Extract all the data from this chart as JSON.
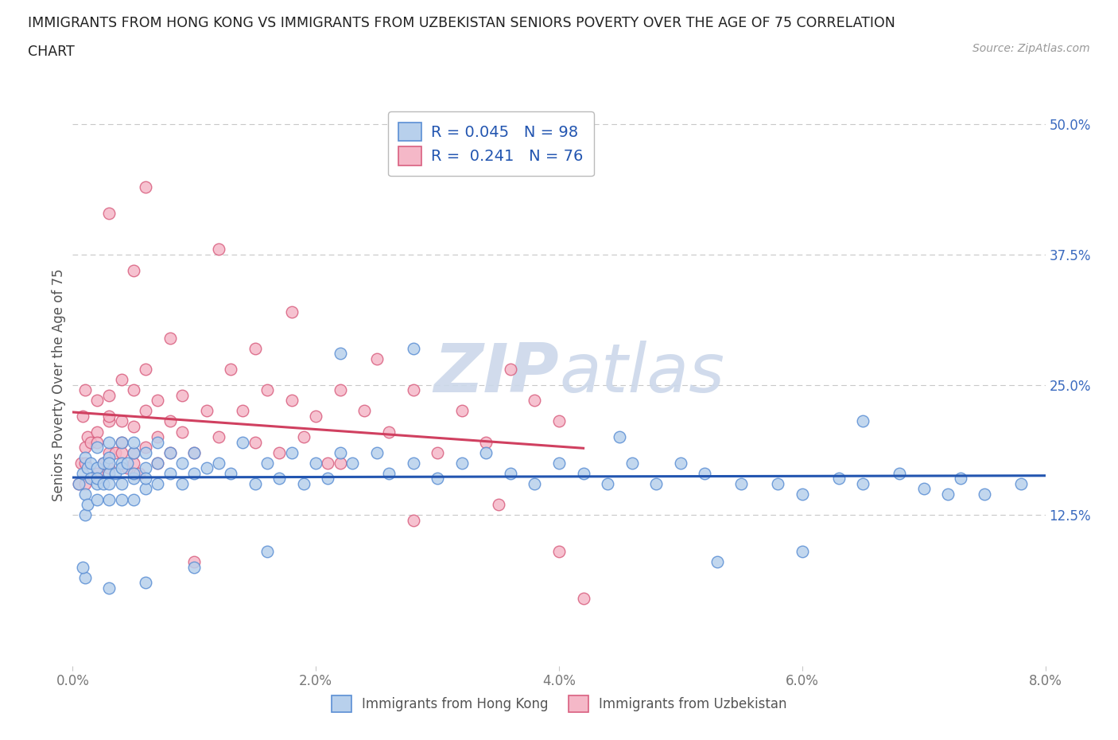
{
  "title_line1": "IMMIGRANTS FROM HONG KONG VS IMMIGRANTS FROM UZBEKISTAN SENIORS POVERTY OVER THE AGE OF 75 CORRELATION",
  "title_line2": "CHART",
  "source_text": "Source: ZipAtlas.com",
  "ylabel": "Seniors Poverty Over the Age of 75",
  "xlim": [
    0.0,
    0.08
  ],
  "ylim": [
    -0.02,
    0.52
  ],
  "xtick_vals": [
    0.0,
    0.02,
    0.04,
    0.06,
    0.08
  ],
  "xtick_labels": [
    "0.0%",
    "2.0%",
    "4.0%",
    "6.0%",
    "8.0%"
  ],
  "ytick_vals": [
    0.125,
    0.25,
    0.375,
    0.5
  ],
  "ytick_labels": [
    "12.5%",
    "25.0%",
    "37.5%",
    "50.0%"
  ],
  "hgrid_vals": [
    0.125,
    0.25,
    0.375,
    0.5
  ],
  "legend_hk_r": "0.045",
  "legend_hk_n": "98",
  "legend_uz_r": "0.241",
  "legend_uz_n": "76",
  "hk_face_color": "#b8d0ec",
  "uz_face_color": "#f5b8c8",
  "hk_edge_color": "#5b8fd4",
  "uz_edge_color": "#d96080",
  "trendline_hk_color": "#2255b0",
  "trendline_uz_color": "#d04060",
  "bg_color": "#ffffff",
  "title_color": "#222222",
  "axis_label_color": "#555555",
  "tick_label_color": "#777777",
  "right_tick_color": "#3a6abf",
  "grid_color": "#c8c8c8",
  "watermark_color": "#ccd8ea",
  "legend_text_color": "#2255b0",
  "legend_label_hk": "Immigrants from Hong Kong",
  "legend_label_uz": "Immigrants from Uzbekistan",
  "hk_x": [
    0.0005,
    0.0008,
    0.001,
    0.001,
    0.001,
    0.0012,
    0.0012,
    0.0015,
    0.0015,
    0.002,
    0.002,
    0.002,
    0.002,
    0.002,
    0.0025,
    0.0025,
    0.003,
    0.003,
    0.003,
    0.003,
    0.003,
    0.003,
    0.0035,
    0.004,
    0.004,
    0.004,
    0.004,
    0.004,
    0.0045,
    0.005,
    0.005,
    0.005,
    0.005,
    0.005,
    0.006,
    0.006,
    0.006,
    0.006,
    0.007,
    0.007,
    0.007,
    0.008,
    0.008,
    0.009,
    0.009,
    0.01,
    0.01,
    0.011,
    0.012,
    0.013,
    0.014,
    0.015,
    0.016,
    0.017,
    0.018,
    0.019,
    0.02,
    0.021,
    0.022,
    0.023,
    0.025,
    0.026,
    0.028,
    0.03,
    0.032,
    0.034,
    0.036,
    0.038,
    0.04,
    0.042,
    0.044,
    0.046,
    0.048,
    0.05,
    0.052,
    0.055,
    0.058,
    0.06,
    0.063,
    0.065,
    0.068,
    0.07,
    0.073,
    0.075,
    0.065,
    0.072,
    0.078,
    0.06,
    0.053,
    0.045,
    0.028,
    0.022,
    0.016,
    0.01,
    0.006,
    0.003,
    0.001,
    0.0008
  ],
  "hk_y": [
    0.155,
    0.165,
    0.18,
    0.145,
    0.125,
    0.17,
    0.135,
    0.16,
    0.175,
    0.155,
    0.19,
    0.14,
    0.17,
    0.16,
    0.175,
    0.155,
    0.165,
    0.195,
    0.14,
    0.18,
    0.155,
    0.175,
    0.165,
    0.175,
    0.155,
    0.195,
    0.14,
    0.17,
    0.175,
    0.16,
    0.185,
    0.14,
    0.195,
    0.165,
    0.17,
    0.15,
    0.185,
    0.16,
    0.175,
    0.155,
    0.195,
    0.165,
    0.185,
    0.175,
    0.155,
    0.165,
    0.185,
    0.17,
    0.175,
    0.165,
    0.195,
    0.155,
    0.175,
    0.16,
    0.185,
    0.155,
    0.175,
    0.16,
    0.185,
    0.175,
    0.185,
    0.165,
    0.175,
    0.16,
    0.175,
    0.185,
    0.165,
    0.155,
    0.175,
    0.165,
    0.155,
    0.175,
    0.155,
    0.175,
    0.165,
    0.155,
    0.155,
    0.145,
    0.16,
    0.155,
    0.165,
    0.15,
    0.16,
    0.145,
    0.215,
    0.145,
    0.155,
    0.09,
    0.08,
    0.2,
    0.285,
    0.28,
    0.09,
    0.075,
    0.06,
    0.055,
    0.065,
    0.075
  ],
  "uz_x": [
    0.0005,
    0.0007,
    0.0008,
    0.001,
    0.001,
    0.001,
    0.001,
    0.0012,
    0.0015,
    0.002,
    0.002,
    0.002,
    0.002,
    0.0025,
    0.003,
    0.003,
    0.003,
    0.003,
    0.003,
    0.0035,
    0.004,
    0.004,
    0.004,
    0.004,
    0.0045,
    0.005,
    0.005,
    0.005,
    0.005,
    0.0055,
    0.006,
    0.006,
    0.006,
    0.007,
    0.007,
    0.007,
    0.008,
    0.008,
    0.009,
    0.009,
    0.01,
    0.011,
    0.012,
    0.013,
    0.014,
    0.015,
    0.016,
    0.017,
    0.018,
    0.019,
    0.02,
    0.021,
    0.022,
    0.024,
    0.026,
    0.028,
    0.03,
    0.032,
    0.034,
    0.036,
    0.038,
    0.04,
    0.008,
    0.012,
    0.006,
    0.018,
    0.022,
    0.028,
    0.003,
    0.005,
    0.015,
    0.025,
    0.01,
    0.035,
    0.04,
    0.042
  ],
  "uz_y": [
    0.155,
    0.175,
    0.22,
    0.155,
    0.19,
    0.175,
    0.245,
    0.2,
    0.195,
    0.205,
    0.165,
    0.235,
    0.195,
    0.175,
    0.215,
    0.185,
    0.24,
    0.17,
    0.22,
    0.185,
    0.215,
    0.195,
    0.255,
    0.185,
    0.17,
    0.21,
    0.175,
    0.245,
    0.185,
    0.165,
    0.225,
    0.19,
    0.265,
    0.2,
    0.175,
    0.235,
    0.215,
    0.185,
    0.24,
    0.205,
    0.185,
    0.225,
    0.2,
    0.265,
    0.225,
    0.195,
    0.245,
    0.185,
    0.235,
    0.2,
    0.22,
    0.175,
    0.245,
    0.225,
    0.205,
    0.245,
    0.185,
    0.225,
    0.195,
    0.265,
    0.235,
    0.215,
    0.295,
    0.38,
    0.44,
    0.32,
    0.175,
    0.12,
    0.415,
    0.36,
    0.285,
    0.275,
    0.08,
    0.135,
    0.09,
    0.045
  ]
}
